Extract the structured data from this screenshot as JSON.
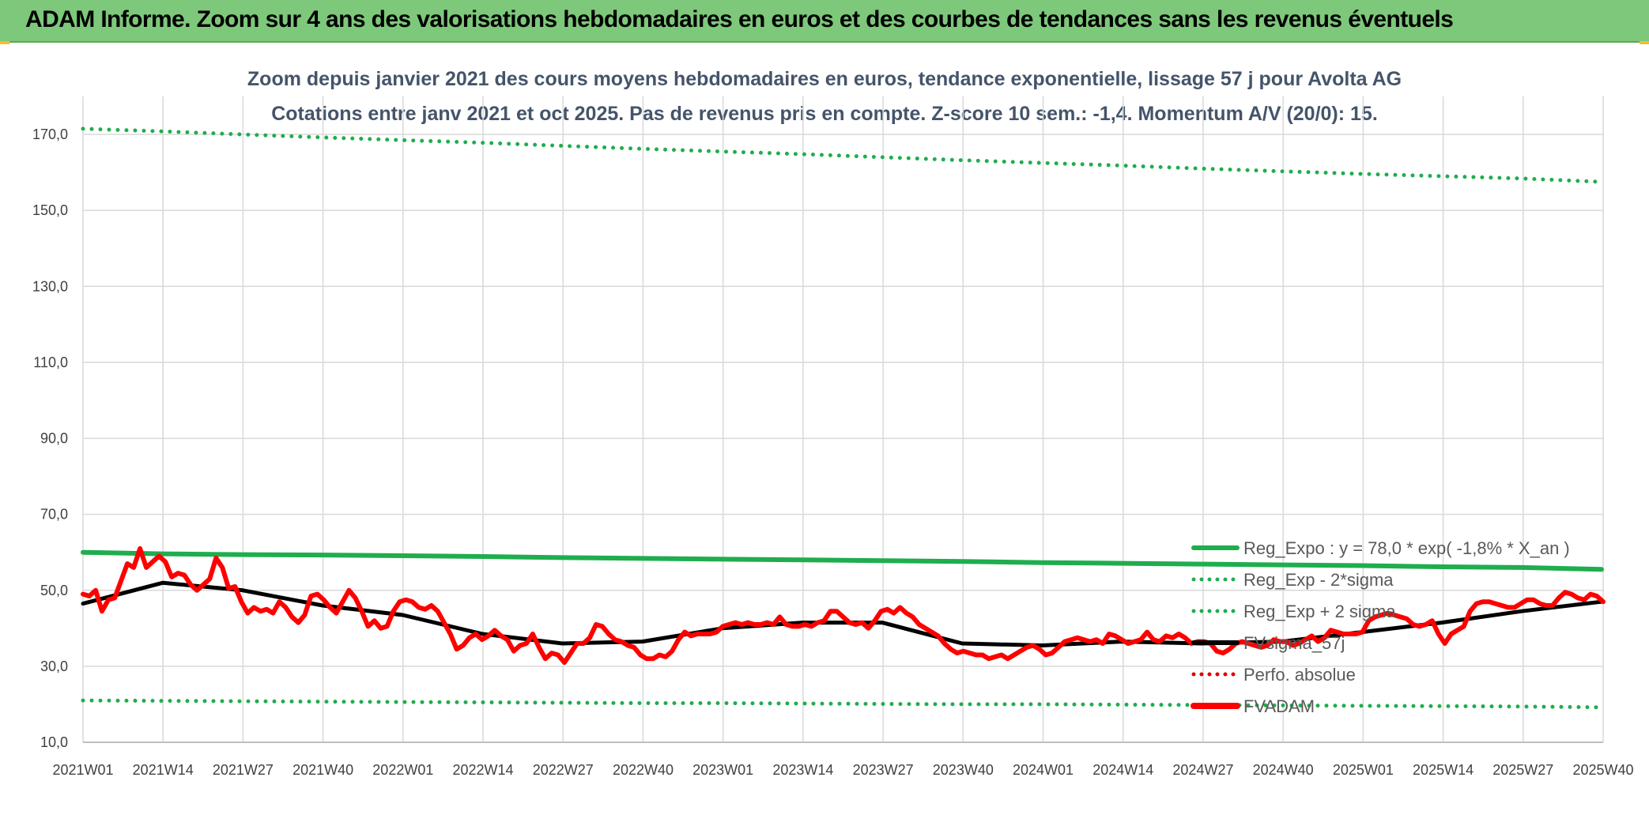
{
  "header": {
    "title": "ADAM Informe. Zoom sur 4 ans des valorisations hebdomadaires en euros et des courbes de tendances sans les revenus éventuels"
  },
  "chart_data": {
    "type": "line",
    "title": "Zoom depuis janvier 2021 des cours moyens hebdomadaires en euros, tendance exponentielle, lissage 57 j pour Avolta AG",
    "subtitle": "Cotations entre janv 2021 et oct 2025. Pas de revenus pris en compte. Z-score 10 sem.: -1,4. Momentum A/V (20/0): 15.",
    "xlabel": "",
    "ylabel": "",
    "ylim": [
      10,
      180
    ],
    "yticks": [
      "170,0",
      "150,0",
      "130,0",
      "110,0",
      "90,0",
      "70,0",
      "50,0",
      "30,0",
      "10,0"
    ],
    "ytick_values": [
      170,
      150,
      130,
      110,
      90,
      70,
      50,
      30,
      10
    ],
    "xticks": [
      "2021W01",
      "2021W14",
      "2021W27",
      "2021W40",
      "2022W01",
      "2022W14",
      "2022W27",
      "2022W40",
      "2023W01",
      "2023W14",
      "2023W27",
      "2023W40",
      "2024W01",
      "2024W14",
      "2024W27",
      "2024W40",
      "2025W01",
      "2025W14",
      "2025W27",
      "2025W40"
    ],
    "grid": true,
    "legend_position": "bottom-right",
    "series": [
      {
        "name": "Reg_Expo : y = 78,0 * exp( -1,8% *  X_an )",
        "style": "solid",
        "color": "#1fad4e",
        "values": [
          60.0,
          59.6,
          59.4,
          59.3,
          59.1,
          58.9,
          58.6,
          58.4,
          58.2,
          58.0,
          57.8,
          57.6,
          57.3,
          57.1,
          56.9,
          56.7,
          56.5,
          56.2,
          56.0,
          55.5
        ]
      },
      {
        "name": "Reg_Exp - 2*sigma",
        "style": "dotted",
        "color": "#1fad4e",
        "values": [
          21.0,
          20.9,
          20.8,
          20.7,
          20.6,
          20.5,
          20.4,
          20.3,
          20.3,
          20.2,
          20.1,
          20.0,
          20.0,
          19.9,
          19.8,
          19.7,
          19.6,
          19.5,
          19.4,
          19.2
        ]
      },
      {
        "name": "Reg_Exp + 2 sigma",
        "style": "dotted",
        "color": "#1fad4e",
        "values": [
          171.5,
          170.8,
          170.0,
          169.2,
          168.5,
          167.8,
          167.0,
          166.2,
          165.5,
          164.8,
          164.0,
          163.2,
          162.5,
          161.8,
          161.0,
          160.3,
          159.6,
          159.0,
          158.4,
          157.5
        ]
      },
      {
        "name": "FVsigma_57j",
        "style": "solid",
        "color": "#000000",
        "values": [
          46.5,
          52.0,
          50.0,
          46.0,
          43.5,
          38.5,
          36.0,
          36.5,
          40.0,
          41.5,
          41.5,
          36.0,
          35.5,
          36.5,
          36.0,
          36.5,
          39.0,
          41.5,
          44.5,
          47.0
        ]
      },
      {
        "name": "Perfo. absolue",
        "style": "dotted",
        "color": "#e00000",
        "values": []
      },
      {
        "name": "FVADAM",
        "style": "solid",
        "color": "#ff0000",
        "values": [
          49.0,
          48.5,
          50.0,
          44.5,
          47.5,
          48.0,
          52.5,
          57.0,
          56.0,
          61.0,
          56.0,
          57.5,
          59.0,
          57.5,
          53.5,
          54.5,
          54.0,
          51.5,
          50.0,
          51.5,
          53.0,
          58.5,
          56.0,
          50.5,
          51.0,
          47.0,
          44.0,
          45.5,
          44.5,
          45.0,
          44.0,
          47.0,
          45.5,
          43.0,
          41.5,
          43.5,
          48.5,
          49.0,
          47.5,
          45.5,
          44.0,
          47.0,
          50.0,
          48.0,
          44.5,
          40.5,
          42.0,
          40.0,
          40.5,
          44.5,
          47.0,
          47.5,
          47.0,
          45.5,
          45.0,
          46.0,
          44.5,
          41.5,
          38.5,
          34.5,
          35.5,
          37.5,
          38.5,
          37.0,
          38.0,
          39.5,
          38.0,
          37.0,
          34.0,
          35.5,
          36.0,
          38.5,
          35.0,
          32.0,
          33.5,
          33.0,
          31.0,
          33.5,
          36.0,
          36.0,
          37.5,
          41.0,
          40.5,
          38.5,
          37.0,
          36.5,
          35.5,
          35.0,
          33.0,
          32.0,
          32.0,
          33.0,
          32.5,
          34.0,
          37.0,
          39.0,
          38.0,
          38.5,
          38.5,
          38.5,
          39.0,
          40.5,
          41.0,
          41.5,
          41.0,
          41.5,
          41.0,
          41.0,
          41.5,
          41.0,
          43.0,
          41.0,
          40.5,
          40.5,
          41.0,
          40.5,
          41.5,
          42.0,
          44.5,
          44.5,
          43.0,
          41.5,
          41.0,
          41.5,
          40.0,
          42.0,
          44.5,
          45.0,
          44.0,
          45.5,
          44.0,
          43.0,
          41.0,
          40.0,
          39.0,
          38.0,
          36.0,
          34.5,
          33.5,
          34.0,
          33.5,
          33.0,
          33.0,
          32.0,
          32.5,
          33.0,
          32.0,
          33.0,
          34.0,
          35.0,
          35.5,
          34.5,
          33.0,
          33.5,
          35.0,
          36.5,
          37.0,
          37.5,
          37.0,
          36.5,
          37.0,
          36.0,
          38.5,
          38.0,
          37.0,
          36.0,
          36.5,
          37.0,
          39.0,
          37.0,
          36.5,
          38.0,
          37.5,
          38.5,
          37.5,
          36.0,
          36.5,
          36.5,
          36.0,
          34.0,
          33.5,
          34.5,
          36.0,
          36.5,
          36.0,
          35.5,
          35.0,
          35.5,
          37.0,
          36.5,
          36.5,
          35.5,
          36.0,
          37.0,
          38.0,
          36.5,
          37.5,
          39.5,
          39.0,
          38.5,
          38.5,
          38.5,
          39.0,
          42.0,
          43.0,
          43.5,
          44.0,
          43.5,
          43.0,
          42.5,
          41.0,
          40.5,
          41.0,
          42.0,
          38.5,
          36.0,
          38.5,
          39.5,
          40.5,
          44.5,
          46.5,
          47.0,
          47.0,
          46.5,
          46.0,
          45.5,
          45.5,
          46.5,
          47.5,
          47.5,
          46.5,
          46.0,
          46.0,
          48.0,
          49.5,
          49.0,
          48.0,
          47.5,
          49.0,
          48.5,
          47.0
        ]
      }
    ]
  }
}
